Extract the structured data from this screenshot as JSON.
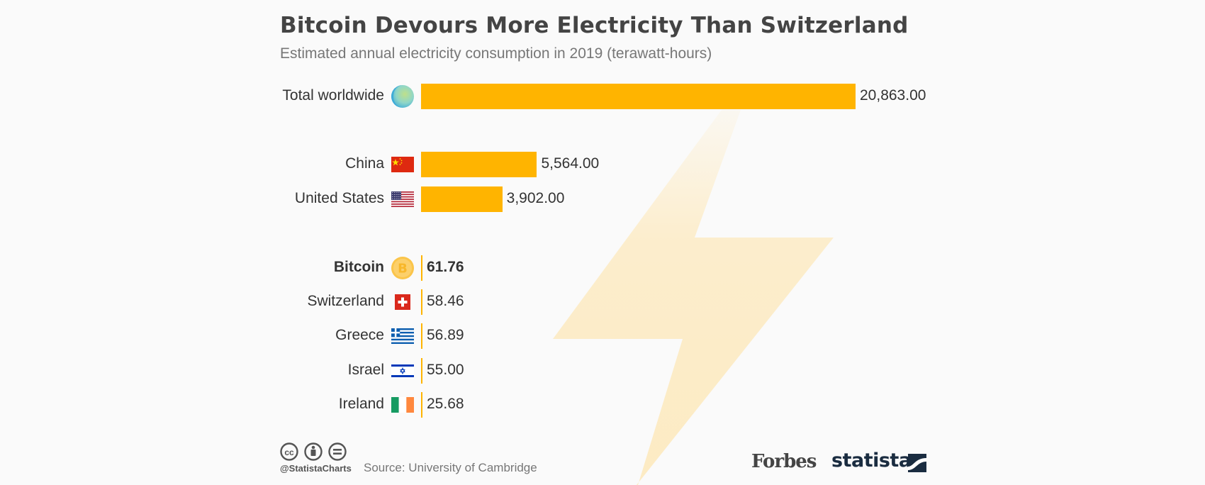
{
  "chart_data": {
    "type": "bar",
    "orientation": "horizontal",
    "title": "Bitcoin Devours More Electricity Than Switzerland",
    "subtitle": "Estimated annual electricity consumption in 2019 (terawatt-hours)",
    "categories": [
      "Total worldwide",
      "China",
      "United States",
      "Bitcoin",
      "Switzerland",
      "Greece",
      "Israel",
      "Ireland"
    ],
    "values": [
      20863.0,
      5564.0,
      3902.0,
      61.76,
      58.46,
      56.89,
      55.0,
      25.68
    ],
    "value_labels": [
      "20,863.00",
      "5,564.00",
      "3,902.00",
      "61.76",
      "58.46",
      "56.89",
      "55.00",
      "25.68"
    ],
    "icons": [
      "globe-icon",
      "china-flag-icon",
      "us-flag-icon",
      "bitcoin-icon",
      "switzerland-flag-icon",
      "greece-flag-icon",
      "israel-flag-icon",
      "ireland-flag-icon"
    ],
    "highlight": "Bitcoin",
    "bar_color": "#ffb400",
    "xlim": [
      0,
      20863
    ],
    "grid": false,
    "legend": "none"
  },
  "footer": {
    "handle": "@StatistaCharts",
    "source": "Source: University of Cambridge",
    "forbes_logo": "Forbes",
    "statista_logo": "statista"
  },
  "colors": {
    "background": "#fafafa",
    "bolt": "#fde9bd",
    "title": "#444444",
    "subtitle": "#777777"
  }
}
